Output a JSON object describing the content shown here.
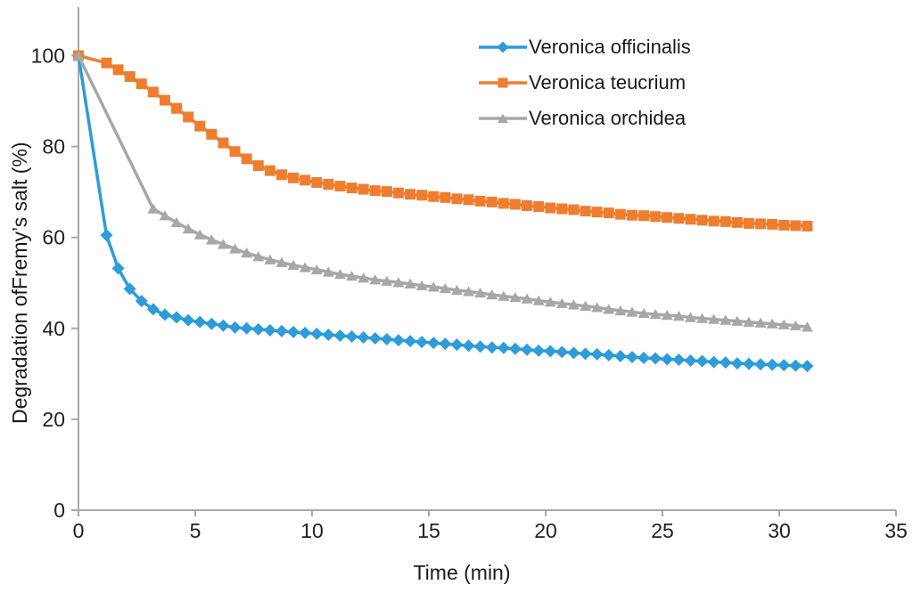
{
  "chart_data": {
    "type": "line",
    "title": "",
    "xlabel": "Time (min)",
    "ylabel": "Degradation ofFremy’s salt (%)",
    "xlim": [
      0,
      35
    ],
    "ylim": [
      0,
      110
    ],
    "x_ticks": [
      0,
      5,
      10,
      15,
      20,
      25,
      30,
      35
    ],
    "y_ticks": [
      0,
      20,
      40,
      60,
      80,
      100
    ],
    "grid": false,
    "axis_color": "#A9A9A9",
    "tick_text_color": "#1F1F1F",
    "legend_position": "top-center-vertical",
    "series": [
      {
        "name": "Veronica officinalis",
        "color": "#2D9CD9",
        "marker": "diamond",
        "points": [
          [
            0,
            100
          ],
          [
            1.2,
            60.5
          ],
          [
            1.7,
            53.2
          ],
          [
            2.2,
            48.7
          ],
          [
            2.7,
            46
          ],
          [
            3.2,
            44.2
          ],
          [
            3.7,
            43
          ],
          [
            4.2,
            42.4
          ],
          [
            4.7,
            41.8
          ],
          [
            5.2,
            41.4
          ],
          [
            5.7,
            41
          ],
          [
            6.2,
            40.6
          ],
          [
            6.7,
            40.2
          ],
          [
            7.2,
            40
          ],
          [
            7.7,
            39.8
          ],
          [
            8.2,
            39.6
          ],
          [
            8.7,
            39.4
          ],
          [
            9.2,
            39.2
          ],
          [
            9.7,
            39
          ],
          [
            10.2,
            38.8
          ],
          [
            10.7,
            38.6
          ],
          [
            11.2,
            38.4
          ],
          [
            11.7,
            38.2
          ],
          [
            12.2,
            38
          ],
          [
            12.7,
            37.8
          ],
          [
            13.2,
            37.6
          ],
          [
            13.7,
            37.4
          ],
          [
            14.2,
            37.2
          ],
          [
            14.7,
            37
          ],
          [
            15.2,
            36.8
          ],
          [
            15.7,
            36.6
          ],
          [
            16.2,
            36.4
          ],
          [
            16.7,
            36.2
          ],
          [
            17.2,
            36
          ],
          [
            17.7,
            35.8
          ],
          [
            18.2,
            35.7
          ],
          [
            18.7,
            35.5
          ],
          [
            19.2,
            35.3
          ],
          [
            19.7,
            35.1
          ],
          [
            20.2,
            35
          ],
          [
            20.7,
            34.8
          ],
          [
            21.2,
            34.6
          ],
          [
            21.7,
            34.4
          ],
          [
            22.2,
            34.3
          ],
          [
            22.7,
            34.1
          ],
          [
            23.2,
            33.9
          ],
          [
            23.7,
            33.7
          ],
          [
            24.2,
            33.5
          ],
          [
            24.7,
            33.4
          ],
          [
            25.2,
            33.2
          ],
          [
            25.7,
            33.1
          ],
          [
            26.2,
            32.9
          ],
          [
            26.7,
            32.8
          ],
          [
            27.2,
            32.6
          ],
          [
            27.7,
            32.5
          ],
          [
            28.2,
            32.3
          ],
          [
            28.7,
            32.2
          ],
          [
            29.2,
            32.1
          ],
          [
            29.7,
            32
          ],
          [
            30.2,
            31.9
          ],
          [
            30.7,
            31.8
          ],
          [
            31.2,
            31.7
          ]
        ]
      },
      {
        "name": "Veronica teucrium",
        "color": "#EF7D2F",
        "marker": "square",
        "points": [
          [
            0,
            100
          ],
          [
            1.2,
            98.4
          ],
          [
            1.7,
            96.9
          ],
          [
            2.2,
            95.4
          ],
          [
            2.7,
            93.8
          ],
          [
            3.2,
            92
          ],
          [
            3.7,
            90.2
          ],
          [
            4.2,
            88.4
          ],
          [
            4.7,
            86.5
          ],
          [
            5.2,
            84.5
          ],
          [
            5.7,
            82.7
          ],
          [
            6.2,
            80.8
          ],
          [
            6.7,
            78.9
          ],
          [
            7.2,
            77.3
          ],
          [
            7.7,
            75.8
          ],
          [
            8.2,
            74.7
          ],
          [
            8.7,
            73.8
          ],
          [
            9.2,
            73.1
          ],
          [
            9.7,
            72.6
          ],
          [
            10.2,
            72.1
          ],
          [
            10.7,
            71.7
          ],
          [
            11.2,
            71.3
          ],
          [
            11.7,
            70.9
          ],
          [
            12.2,
            70.6
          ],
          [
            12.7,
            70.3
          ],
          [
            13.2,
            70.1
          ],
          [
            13.7,
            69.8
          ],
          [
            14.2,
            69.5
          ],
          [
            14.7,
            69.3
          ],
          [
            15.2,
            69
          ],
          [
            15.7,
            68.8
          ],
          [
            16.2,
            68.5
          ],
          [
            16.7,
            68.3
          ],
          [
            17.2,
            68
          ],
          [
            17.7,
            67.8
          ],
          [
            18.2,
            67.5
          ],
          [
            18.7,
            67.3
          ],
          [
            19.2,
            67
          ],
          [
            19.7,
            66.8
          ],
          [
            20.2,
            66.5
          ],
          [
            20.7,
            66.3
          ],
          [
            21.2,
            66.1
          ],
          [
            21.7,
            65.8
          ],
          [
            22.2,
            65.6
          ],
          [
            22.7,
            65.4
          ],
          [
            23.2,
            65.1
          ],
          [
            23.7,
            64.9
          ],
          [
            24.2,
            64.8
          ],
          [
            24.7,
            64.6
          ],
          [
            25.2,
            64.4
          ],
          [
            25.7,
            64.2
          ],
          [
            26.2,
            64
          ],
          [
            26.7,
            63.8
          ],
          [
            27.2,
            63.6
          ],
          [
            27.7,
            63.5
          ],
          [
            28.2,
            63.3
          ],
          [
            28.7,
            63.1
          ],
          [
            29.2,
            63
          ],
          [
            29.7,
            62.9
          ],
          [
            30.2,
            62.7
          ],
          [
            30.7,
            62.6
          ],
          [
            31.2,
            62.5
          ]
        ]
      },
      {
        "name": "Veronica orchidea",
        "color": "#A7A7A7",
        "marker": "triangle",
        "points": [
          [
            0,
            100
          ],
          [
            3.2,
            66.3
          ],
          [
            3.7,
            64.8
          ],
          [
            4.2,
            63.3
          ],
          [
            4.7,
            61.9
          ],
          [
            5.2,
            60.6
          ],
          [
            5.7,
            59.5
          ],
          [
            6.2,
            58.5
          ],
          [
            6.7,
            57.5
          ],
          [
            7.2,
            56.6
          ],
          [
            7.7,
            55.8
          ],
          [
            8.2,
            55.1
          ],
          [
            8.7,
            54.5
          ],
          [
            9.2,
            53.9
          ],
          [
            9.7,
            53.4
          ],
          [
            10.2,
            52.9
          ],
          [
            10.7,
            52.4
          ],
          [
            11.2,
            51.9
          ],
          [
            11.7,
            51.5
          ],
          [
            12.2,
            51.1
          ],
          [
            12.7,
            50.7
          ],
          [
            13.2,
            50.4
          ],
          [
            13.7,
            50.1
          ],
          [
            14.2,
            49.8
          ],
          [
            14.7,
            49.4
          ],
          [
            15.2,
            49.1
          ],
          [
            15.7,
            48.8
          ],
          [
            16.2,
            48.4
          ],
          [
            16.7,
            48.1
          ],
          [
            17.2,
            47.8
          ],
          [
            17.7,
            47.4
          ],
          [
            18.2,
            47.1
          ],
          [
            18.7,
            46.8
          ],
          [
            19.2,
            46.5
          ],
          [
            19.7,
            46.1
          ],
          [
            20.2,
            45.8
          ],
          [
            20.7,
            45.5
          ],
          [
            21.2,
            45.2
          ],
          [
            21.7,
            44.9
          ],
          [
            22.2,
            44.6
          ],
          [
            22.7,
            44.2
          ],
          [
            23.2,
            43.9
          ],
          [
            23.7,
            43.6
          ],
          [
            24.2,
            43.3
          ],
          [
            24.7,
            43.1
          ],
          [
            25.2,
            42.9
          ],
          [
            25.7,
            42.7
          ],
          [
            26.2,
            42.4
          ],
          [
            26.7,
            42.2
          ],
          [
            27.2,
            42
          ],
          [
            27.7,
            41.8
          ],
          [
            28.2,
            41.6
          ],
          [
            28.7,
            41.4
          ],
          [
            29.2,
            41.2
          ],
          [
            29.7,
            41
          ],
          [
            30.2,
            40.8
          ],
          [
            30.7,
            40.6
          ],
          [
            31.2,
            40.3
          ]
        ]
      }
    ]
  }
}
